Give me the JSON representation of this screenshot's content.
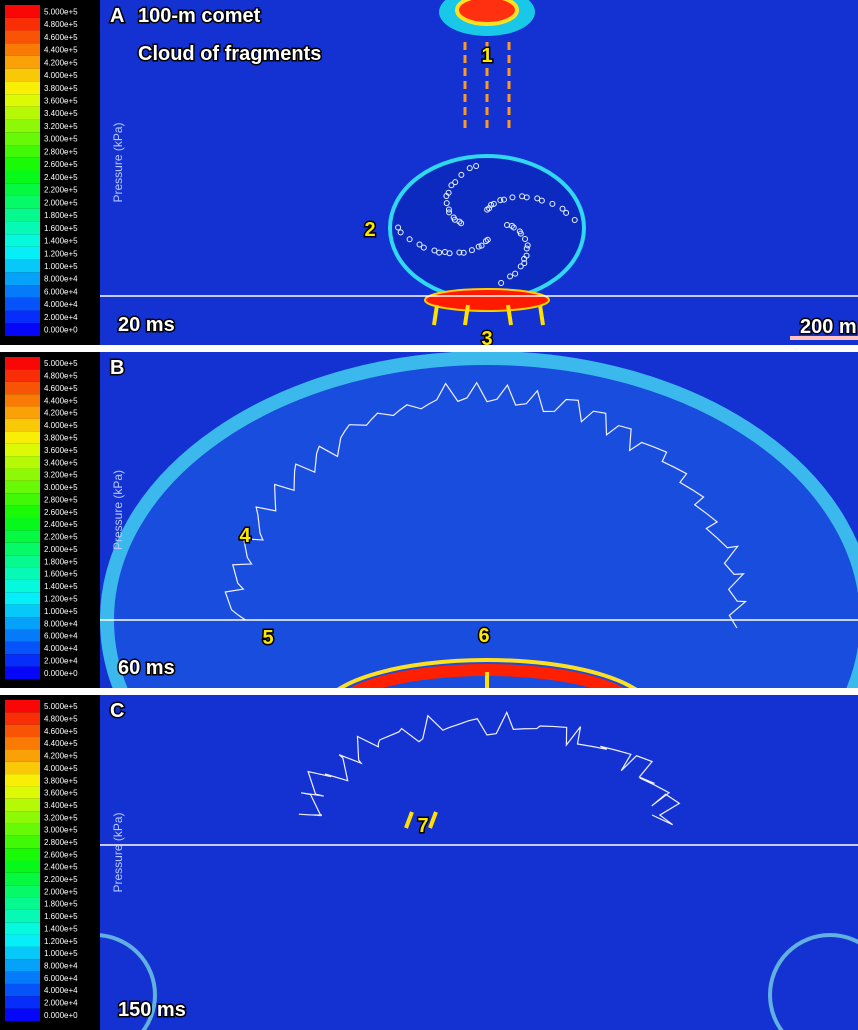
{
  "colorbar_title": "Pressure (kPa)",
  "colorbar_labels": [
    "5.000e+5",
    "4.800e+5",
    "4.600e+5",
    "4.400e+5",
    "4.200e+5",
    "4.000e+5",
    "3.800e+5",
    "3.600e+5",
    "3.400e+5",
    "3.200e+5",
    "3.000e+5",
    "2.800e+5",
    "2.600e+5",
    "2.400e+5",
    "2.200e+5",
    "2.000e+5",
    "1.800e+5",
    "1.600e+5",
    "1.400e+5",
    "1.200e+5",
    "1.000e+5",
    "8.000e+4",
    "6.000e+4",
    "4.000e+4",
    "2.000e+4",
    "0.000e+0"
  ],
  "panels": [
    {
      "label": "A",
      "title": "100-m comet",
      "subtitle": "Cloud of fragments",
      "time": "20 ms",
      "markers": [
        "1",
        "2",
        "3"
      ],
      "scale_bar": "200 m"
    },
    {
      "label": "B",
      "time": "60 ms",
      "markers": [
        "4",
        "5",
        "6"
      ]
    },
    {
      "label": "C",
      "time": "150 ms",
      "markers": [
        "7"
      ]
    }
  ]
}
